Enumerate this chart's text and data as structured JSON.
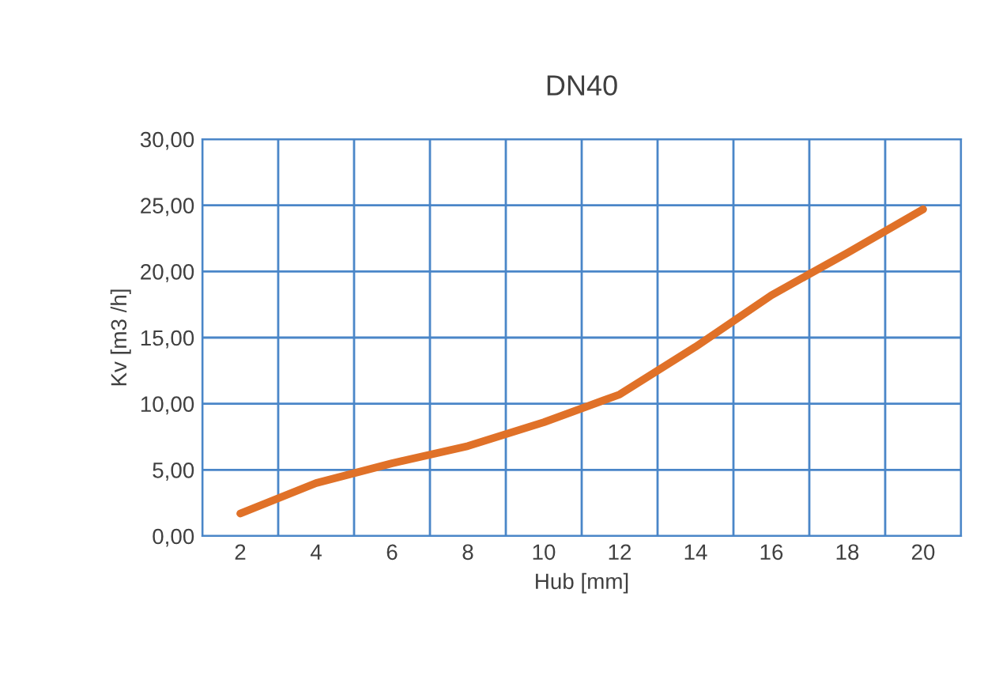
{
  "chart_data": {
    "type": "line",
    "title": "DN40",
    "xlabel": "Hub [mm]",
    "ylabel": "Kv [m3 /h]",
    "categories": [
      "2",
      "4",
      "6",
      "8",
      "10",
      "12",
      "14",
      "16",
      "18",
      "20"
    ],
    "series": [
      {
        "color": "#e07128",
        "values": [
          1.7,
          4.0,
          5.5,
          6.8,
          8.6,
          10.7,
          14.3,
          18.2,
          21.4,
          24.7
        ]
      }
    ],
    "ylim": [
      0,
      30
    ],
    "yticks": [
      {
        "value": 0,
        "label": "0,00"
      },
      {
        "value": 5,
        "label": "5,00"
      },
      {
        "value": 10,
        "label": "10,00"
      },
      {
        "value": 15,
        "label": "15,00"
      },
      {
        "value": 20,
        "label": "20,00"
      },
      {
        "value": 25,
        "label": "25,00"
      },
      {
        "value": 30,
        "label": "30,00"
      }
    ],
    "grid": true,
    "legend": false,
    "marker": "none",
    "line_style": "solid"
  }
}
